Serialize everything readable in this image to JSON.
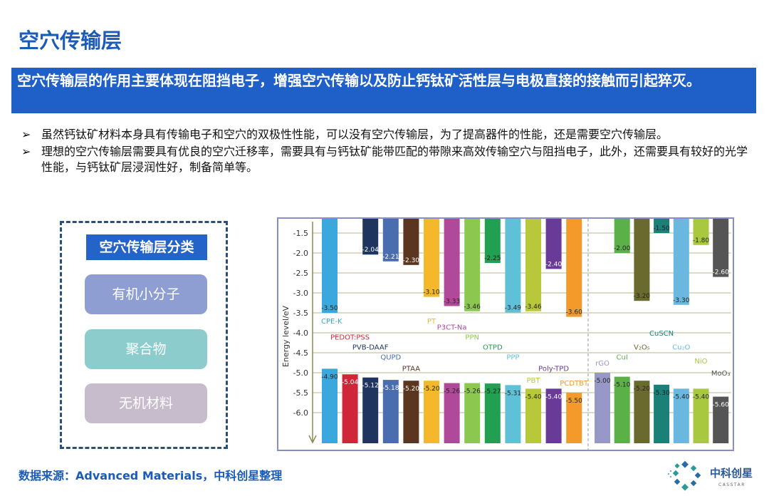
{
  "title": "空穴传输层",
  "banner": "空穴传输层的作用主要体现在阻挡电子，增强空穴传输以及防止钙钛矿活性层与电极直接的接触而引起猝灭。",
  "bullets": [
    {
      "marker": "➢",
      "text": "虽然钙钛矿材料本身具有传输电子和空穴的双极性性能，可以没有空穴传输层，为了提高器件的性能，还是需要空穴传输层。"
    },
    {
      "marker": "➢",
      "text": "理想的空穴传输层需要具有优良的空穴迁移率，需要具有与钙钛矿能带匹配的带隙来高效传输空穴与阻挡电子，此外，还需要具有较好的光学性能，与钙钛矿层浸润性好，制备简单等。"
    }
  ],
  "classification": {
    "header": "空穴传输层分类",
    "items": [
      {
        "label": "有机小分子",
        "color": "#8e9ed2"
      },
      {
        "label": "聚合物",
        "color": "#8ccccc"
      },
      {
        "label": "无机材料",
        "color": "#c6bccb"
      }
    ]
  },
  "chart_data": {
    "type": "bar",
    "ylabel": "Energy level/eV",
    "yticks": [
      "-1.5",
      "-2.0",
      "-2.5",
      "-3.0",
      "-3.5",
      "-4.0",
      "-4.5",
      "-5.0",
      "-5.5",
      "-6.0"
    ],
    "ylim": [
      -1.2,
      -6.8
    ],
    "grid": true,
    "series": [
      {
        "category": "CPE-K",
        "lumo": -3.5,
        "homo": -4.9,
        "color": "#3aa8dc"
      },
      {
        "category": "PEDOT:PSS",
        "lumo": null,
        "homo": -5.04,
        "color": "#d0263a"
      },
      {
        "category": "PVB-DAAF",
        "lumo": -2.04,
        "homo": -5.12,
        "color": "#1f3560"
      },
      {
        "category": "QUPD",
        "lumo": -2.21,
        "homo": -5.18,
        "color": "#4a6db0"
      },
      {
        "category": "PTAA",
        "lumo": -2.3,
        "homo": -5.2,
        "color": "#5a3520"
      },
      {
        "category": "PT",
        "lumo": -3.1,
        "homo": -5.2,
        "color": "#f5b82a"
      },
      {
        "category": "P3CT-Na",
        "lumo": -3.33,
        "homo": -5.26,
        "color": "#b0499a"
      },
      {
        "category": "PPN",
        "lumo": -3.46,
        "homo": -5.26,
        "color": "#8cc850"
      },
      {
        "category": "OTPD",
        "lumo": -2.25,
        "homo": -5.27,
        "color": "#20a050"
      },
      {
        "category": "PPP",
        "lumo": -3.49,
        "homo": -5.31,
        "color": "#60c0d8"
      },
      {
        "category": "PBT",
        "lumo": -3.46,
        "homo": -5.4,
        "color": "#b8c83a"
      },
      {
        "category": "Poly-TPD",
        "lumo": -2.4,
        "homo": -5.4,
        "color": "#6a3a98"
      },
      {
        "category": "PCDTBT",
        "lumo": -3.6,
        "homo": -5.5,
        "color": "#f39a2a"
      },
      {
        "category": "rGO",
        "lumo": null,
        "homo": -5.0,
        "color": "#9898c8"
      },
      {
        "category": "CuI",
        "lumo": -2.0,
        "homo": -5.1,
        "color": "#5cb048"
      },
      {
        "category": "V2O5",
        "lumo": -3.2,
        "homo": -5.2,
        "color": "#6b6a2e"
      },
      {
        "category": "CuSCN",
        "lumo": -1.5,
        "homo": -5.3,
        "color": "#1a8078"
      },
      {
        "category": "Cu2O",
        "lumo": -3.3,
        "homo": -5.4,
        "color": "#6ab8e0"
      },
      {
        "category": "NiO",
        "lumo": -1.8,
        "homo": -5.4,
        "color": "#a8c840"
      },
      {
        "category": "MoO3",
        "lumo": -2.6,
        "homo": -5.6,
        "color": "#555555"
      }
    ]
  },
  "footer": "数据来源：Advanced Materials，中科创星整理",
  "logo": {
    "name": "中科创星",
    "sub": "CASSTAR"
  }
}
